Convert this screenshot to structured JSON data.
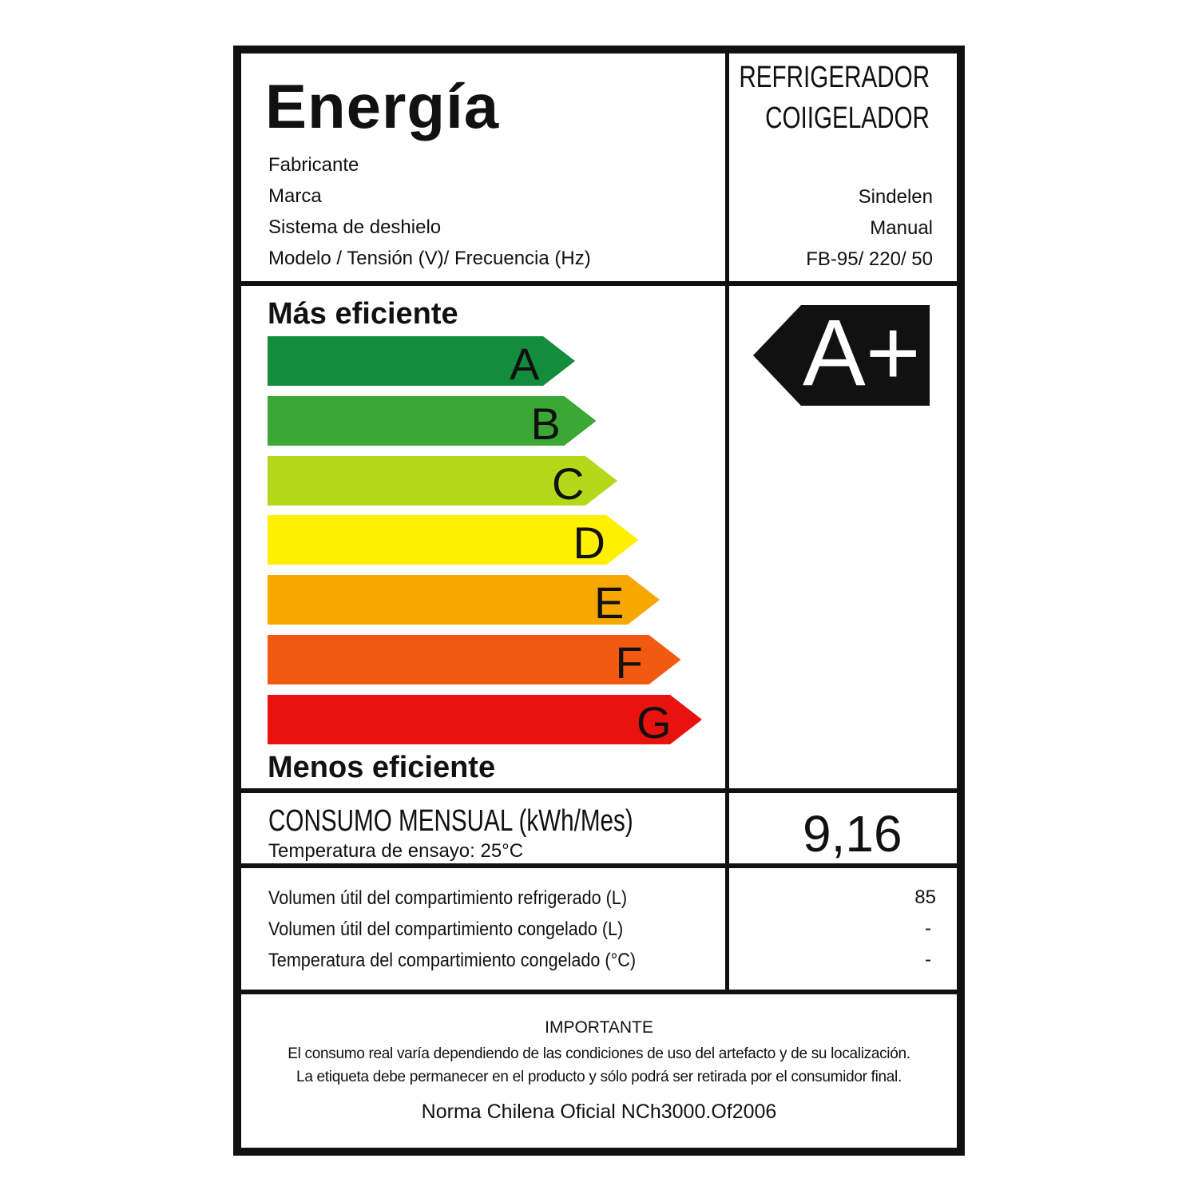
{
  "header": {
    "title": "Energía",
    "category_line1": "REFRIGERADOR",
    "category_line2": "COIIGELADOR",
    "labels": [
      "Fabricante",
      "Marca",
      "Sistema de deshielo",
      "Modelo / Tensión (V)/ Frecuencia (Hz)"
    ],
    "values": [
      "",
      "Sindelen",
      "Manual",
      "FB-95/ 220/ 50"
    ]
  },
  "scale": {
    "top_label": "Más eficiente",
    "bottom_label": "Menos eficiente",
    "classes": [
      {
        "letter": "A",
        "color": "#138c3c"
      },
      {
        "letter": "B",
        "color": "#3ba836"
      },
      {
        "letter": "C",
        "color": "#b5d81b"
      },
      {
        "letter": "D",
        "color": "#fff000"
      },
      {
        "letter": "E",
        "color": "#f7a800"
      },
      {
        "letter": "F",
        "color": "#f25a12"
      },
      {
        "letter": "G",
        "color": "#e8120f"
      }
    ],
    "rating": "A+"
  },
  "consumption": {
    "label": "CONSUMO MENSUAL (kWh/Mes)",
    "test_temp": "Temperatura de ensayo: 25°C",
    "value": "9,16"
  },
  "specs": [
    {
      "label": "Volumen útil del compartimiento refrigerado (L)",
      "value": "85"
    },
    {
      "label": "Volumen útil del compartimiento congelado (L)",
      "value": "-"
    },
    {
      "label": "Temperatura del compartimiento congelado (°C)",
      "value": "-"
    }
  ],
  "footer": {
    "heading": "IMPORTANTE",
    "line1": "El consumo real varía dependiendo de las condiciones de uso del artefacto y de su localización.",
    "line2": "La etiqueta debe permanecer en el producto y sólo podrá ser retirada por el consumidor final.",
    "norm": "Norma Chilena Oficial NCh3000.Of2006"
  }
}
